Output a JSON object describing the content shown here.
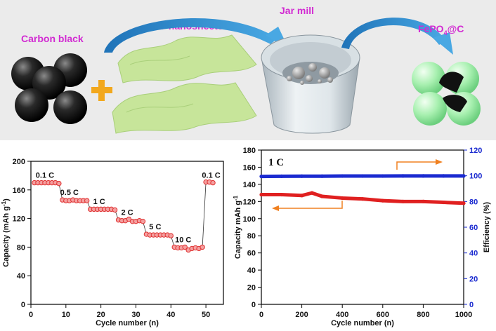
{
  "scheme": {
    "carbon_label": "Carbon black",
    "nanosheets_label": "2D nanosheets",
    "jar_label": "Jar mill",
    "product_prefix": "FePO",
    "product_sub": "4",
    "product_suffix": "@C",
    "plus_color": "#f2a81d",
    "arrow_color": "#2a8fd1",
    "sheet_color": "#c7e59a",
    "label_color": "#d22ad2"
  },
  "chart_data": [
    {
      "type": "scatter",
      "title": "",
      "xlabel": "Cycle number (n)",
      "ylabel_main": "Capacity (mAh g",
      "ylabel_sup": "-1",
      "ylabel_end": ")",
      "xlim": [
        0,
        55
      ],
      "ylim": [
        0,
        200
      ],
      "xticks": [
        0,
        10,
        20,
        30,
        40,
        50
      ],
      "yticks": [
        0,
        40,
        80,
        120,
        160,
        200
      ],
      "series": [
        {
          "name": "",
          "x": [
            1,
            2,
            3,
            4,
            5,
            6,
            7,
            8,
            9,
            10,
            11,
            12,
            13,
            14,
            15,
            16,
            17,
            18,
            19,
            20,
            21,
            22,
            23,
            24,
            25,
            26,
            27,
            28,
            29,
            30,
            31,
            32,
            33,
            34,
            35,
            36,
            37,
            38,
            39,
            40,
            41,
            42,
            43,
            44,
            45,
            46,
            47,
            48,
            49,
            50,
            51,
            52
          ],
          "y": [
            170,
            170,
            170,
            170,
            170,
            170,
            170,
            169,
            146,
            145,
            145,
            146,
            145,
            145,
            145,
            145,
            133,
            133,
            133,
            133,
            133,
            133,
            133,
            132,
            118,
            117,
            117,
            119,
            116,
            116,
            117,
            116,
            98,
            97,
            97,
            97,
            97,
            97,
            97,
            96,
            80,
            79,
            79,
            80,
            76,
            78,
            79,
            78,
            80,
            171,
            171,
            170
          ]
        }
      ],
      "annotations": [
        {
          "text": "0.1 C",
          "x": 4,
          "y": 177
        },
        {
          "text": "0.5 C",
          "x": 11,
          "y": 153
        },
        {
          "text": "1 C",
          "x": 19.5,
          "y": 140
        },
        {
          "text": "2 C",
          "x": 27.5,
          "y": 125
        },
        {
          "text": "5 C",
          "x": 35.5,
          "y": 105
        },
        {
          "text": "10 C",
          "x": 43.5,
          "y": 87
        },
        {
          "text": "0.1 C",
          "x": 51.5,
          "y": 177
        }
      ],
      "marker_color": "#e03030"
    },
    {
      "type": "scatter",
      "title": "1 C",
      "xlabel": "Cycle number (n)",
      "ylabel_main": "Capacity mAh g",
      "ylabel_sup": "-1",
      "ylabel_end": "",
      "y2label": "Efficiency (%)",
      "xlim": [
        0,
        1000
      ],
      "ylim": [
        0,
        180
      ],
      "y2lim": [
        0,
        120
      ],
      "xticks": [
        0,
        200,
        400,
        600,
        800,
        1000
      ],
      "yticks": [
        0,
        20,
        40,
        60,
        80,
        100,
        120,
        140,
        160,
        180
      ],
      "y2ticks": [
        0,
        20,
        40,
        60,
        80,
        100,
        120
      ],
      "series": [
        {
          "name": "",
          "axis": "left",
          "x": [
            0,
            100,
            200,
            250,
            300,
            400,
            500,
            600,
            700,
            800,
            900,
            1000
          ],
          "y": [
            128,
            128,
            127,
            130,
            126,
            124,
            123,
            121,
            120,
            120,
            119,
            118
          ],
          "color": "#e02020"
        },
        {
          "name": "",
          "axis": "right",
          "x": [
            0,
            100,
            200,
            300,
            400,
            500,
            600,
            700,
            800,
            900,
            1000
          ],
          "y": [
            99.5,
            99.6,
            99.7,
            99.7,
            99.8,
            99.8,
            99.8,
            99.9,
            99.9,
            99.9,
            99.9
          ],
          "color": "#1a2ad0"
        }
      ]
    }
  ]
}
